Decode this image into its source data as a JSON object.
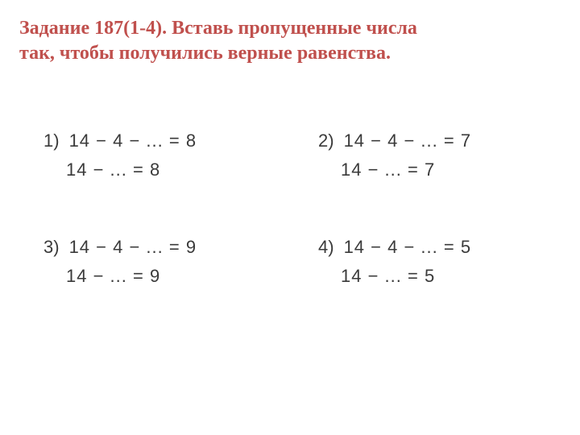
{
  "title_color": "#c0504d",
  "text_color": "#3a3a3a",
  "background_color": "#ffffff",
  "title_fontsize": 24,
  "equation_fontsize": 22,
  "title": {
    "line1": "Задание 187(1-4). Вставь пропущенные числа",
    "line2": "так, чтобы получились верные равенства."
  },
  "problems": [
    {
      "label": "1)",
      "eq1": "14 − 4 − ... = 8",
      "eq2": "14 − ... = 8"
    },
    {
      "label": "2)",
      "eq1": "14 − 4 − ... = 7",
      "eq2": "14 − ... = 7"
    },
    {
      "label": "3)",
      "eq1": "14 − 4 − ... = 9",
      "eq2": "14 − ... = 9"
    },
    {
      "label": "4)",
      "eq1": "14 − 4 − ... = 5",
      "eq2": "14 − ... = 5"
    }
  ]
}
